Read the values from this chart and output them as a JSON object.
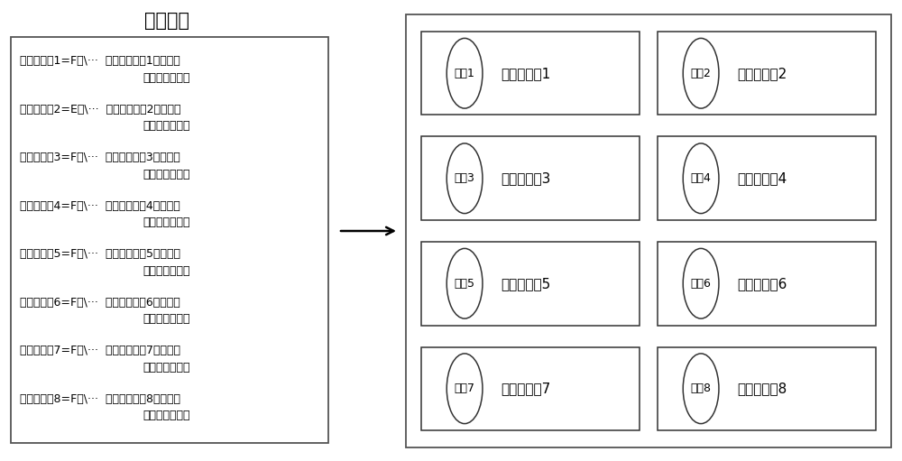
{
  "title": "配置文件",
  "config_lines": [
    [
      "上位机软件1=F：\\···  【上位机软件1在计算机",
      "上的存储路径】"
    ],
    [
      "上位机软件2=E：\\···  【上位机软件2在计算机",
      "上的存储路径】"
    ],
    [
      "上位机软件3=F：\\···  【上位机软件3在计算机",
      "上的存储路径】"
    ],
    [
      "上位机软件4=F：\\···  【上位机软件4在计算机",
      "上的存储路径】"
    ],
    [
      "上位机软件5=F：\\···  【上位机软件5在计算机",
      "上的存储路径】"
    ],
    [
      "上位机软件6=F：\\···  【上位机软件6在计算机",
      "上的存储路径】"
    ],
    [
      "上位机软件7=F：\\···  【上位机软件7在计算机",
      "上的存储路径】"
    ],
    [
      "上位机软件8=F：\\···  【上位机软件8在计算机",
      "上的存储路径】"
    ]
  ],
  "icons": [
    "图标1",
    "图标2",
    "图标3",
    "图标4",
    "图标5",
    "图标6",
    "图标7",
    "图标8"
  ],
  "labels": [
    "上位机软件1",
    "上位机软件2",
    "上位机软件3",
    "上位机软件4",
    "上位机软件5",
    "上位机软件6",
    "上位机软件7",
    "上位机软件8"
  ],
  "bg_color": "#ffffff",
  "box_color": "#000000",
  "text_color": "#000000",
  "font_size_title": 15,
  "font_size_body": 9,
  "font_size_icon": 9,
  "font_size_label": 11
}
